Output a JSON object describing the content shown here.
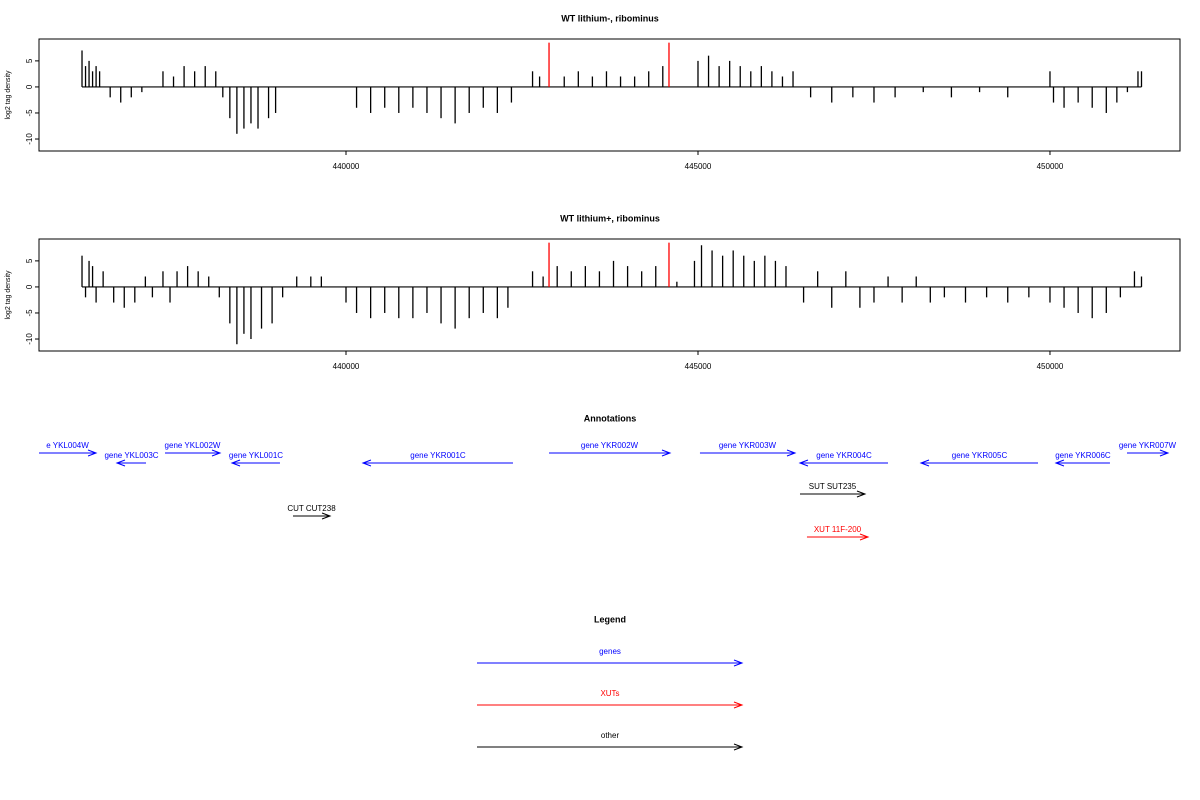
{
  "chart_data": [
    {
      "type": "bar",
      "title": "WT lithium-, ribominus",
      "ylabel": "log2 tag density",
      "xlim": [
        435639,
        451847
      ],
      "ylim": [
        -12.3,
        9.2
      ],
      "xticks": [
        440000,
        445000,
        450000
      ],
      "yticks": [
        5,
        0,
        -5,
        -10
      ],
      "series": [
        {
          "color": "#000000",
          "x": [
            436250,
            436300,
            436350,
            436400,
            436450,
            436500,
            436650,
            436800,
            436950,
            437100,
            437400,
            437550,
            437700,
            437850,
            438000,
            438150,
            438250,
            438350,
            438450,
            438550,
            438650,
            438750,
            438900,
            439000,
            440150,
            440350,
            440550,
            440750,
            440950,
            441150,
            441350,
            441550,
            441750,
            441950,
            442150,
            442350,
            442650,
            442750,
            443100,
            443300,
            443500,
            443700,
            443900,
            444100,
            444300,
            444500,
            445000,
            445150,
            445300,
            445450,
            445600,
            445750,
            445900,
            446050,
            446200,
            446350,
            446600,
            446900,
            447200,
            447500,
            447800,
            448200,
            448600,
            449000,
            449400,
            450000,
            450050,
            450200,
            450400,
            450600,
            450800,
            450950,
            451100,
            451250,
            451300
          ],
          "values": [
            7,
            4,
            5,
            3,
            4,
            3,
            -2,
            -3,
            -2,
            -1,
            3,
            2,
            4,
            3,
            4,
            3,
            -2,
            -6,
            -9,
            -8,
            -7,
            -8,
            -6,
            -5,
            -4,
            -5,
            -4,
            -5,
            -4,
            -5,
            -6,
            -7,
            -5,
            -4,
            -5,
            -3,
            3,
            2,
            2,
            3,
            2,
            3,
            2,
            2,
            3,
            4,
            5,
            6,
            4,
            5,
            4,
            3,
            4,
            3,
            2,
            3,
            -2,
            -3,
            -2,
            -3,
            -2,
            -1,
            -2,
            -1,
            -2,
            3,
            -3,
            -4,
            -3,
            -4,
            -5,
            -3,
            -1,
            3,
            3
          ]
        },
        {
          "color": "#ff0000",
          "x": [
            442884,
            444588
          ],
          "values": [
            8.5,
            8.5
          ]
        }
      ]
    },
    {
      "type": "bar",
      "title": "WT lithium+, ribominus",
      "ylabel": "log2 tag density",
      "xlim": [
        435639,
        451847
      ],
      "ylim": [
        -12.3,
        9.2
      ],
      "xticks": [
        440000,
        445000,
        450000
      ],
      "yticks": [
        5,
        0,
        -5,
        -10
      ],
      "series": [
        {
          "color": "#000000",
          "x": [
            436250,
            436300,
            436350,
            436400,
            436450,
            436550,
            436700,
            436850,
            437000,
            437150,
            437250,
            437400,
            437500,
            437600,
            437750,
            437900,
            438050,
            438200,
            438350,
            438450,
            438550,
            438650,
            438800,
            438950,
            439100,
            439300,
            439500,
            439650,
            440000,
            440150,
            440350,
            440550,
            440750,
            440950,
            441150,
            441350,
            441550,
            441750,
            441950,
            442150,
            442300,
            442650,
            442800,
            443000,
            443200,
            443400,
            443600,
            443800,
            444000,
            444200,
            444400,
            444700,
            444950,
            445050,
            445200,
            445350,
            445500,
            445650,
            445800,
            445950,
            446100,
            446250,
            446500,
            446700,
            446900,
            447100,
            447300,
            447500,
            447700,
            447900,
            448100,
            448300,
            448500,
            448800,
            449100,
            449400,
            449700,
            450000,
            450200,
            450400,
            450600,
            450800,
            451000,
            451200,
            451300
          ],
          "values": [
            6,
            -2,
            5,
            4,
            -3,
            3,
            -3,
            -4,
            -3,
            2,
            -2,
            3,
            -3,
            3,
            4,
            3,
            2,
            -2,
            -7,
            -11,
            -9,
            -10,
            -8,
            -7,
            -2,
            2,
            2,
            2,
            -3,
            -5,
            -6,
            -5,
            -6,
            -6,
            -5,
            -7,
            -8,
            -6,
            -5,
            -6,
            -4,
            3,
            2,
            4,
            3,
            4,
            3,
            5,
            4,
            3,
            4,
            1,
            5,
            8,
            7,
            6,
            7,
            6,
            5,
            6,
            5,
            4,
            -3,
            3,
            -4,
            3,
            -4,
            -3,
            2,
            -3,
            2,
            -3,
            -2,
            -3,
            -2,
            -3,
            -2,
            -3,
            -4,
            -5,
            -6,
            -5,
            -2,
            3,
            2
          ]
        },
        {
          "color": "#ff0000",
          "x": [
            442884,
            444588
          ],
          "values": [
            8.5,
            8.5
          ]
        }
      ]
    }
  ],
  "annotations": {
    "title": "Annotations",
    "features": [
      {
        "label": "e YKL004W",
        "start": 435639,
        "end": 436449,
        "strand": "W",
        "kind": "gene",
        "color": "#0000ff"
      },
      {
        "label": "gene YKL003C",
        "start": 436747,
        "end": 437159,
        "strand": "C",
        "kind": "gene",
        "color": "#0000ff"
      },
      {
        "label": "gene YKL002W",
        "start": 437429,
        "end": 438210,
        "strand": "W",
        "kind": "gene",
        "color": "#0000ff"
      },
      {
        "label": "gene YKL001C",
        "start": 438381,
        "end": 439062,
        "strand": "C",
        "kind": "gene",
        "color": "#0000ff"
      },
      {
        "label": "gene YKR001C",
        "start": 440241,
        "end": 442372,
        "strand": "C",
        "kind": "gene",
        "color": "#0000ff"
      },
      {
        "label": "gene YKR002W",
        "start": 442884,
        "end": 444602,
        "strand": "W",
        "kind": "gene",
        "color": "#0000ff"
      },
      {
        "label": "gene YKR003W",
        "start": 445028,
        "end": 446378,
        "strand": "W",
        "kind": "gene",
        "color": "#0000ff"
      },
      {
        "label": "gene YKR004C",
        "start": 446449,
        "end": 447699,
        "strand": "C",
        "kind": "gene",
        "color": "#0000ff"
      },
      {
        "label": "gene YKR005C",
        "start": 448168,
        "end": 449830,
        "strand": "C",
        "kind": "gene",
        "color": "#0000ff"
      },
      {
        "label": "gene YKR006C",
        "start": 450085,
        "end": 450852,
        "strand": "C",
        "kind": "gene",
        "color": "#0000ff"
      },
      {
        "label": "gene YKR007W",
        "start": 451094,
        "end": 451676,
        "strand": "W",
        "kind": "gene",
        "color": "#0000ff"
      },
      {
        "label": "SUT SUT235",
        "start": 446449,
        "end": 447372,
        "strand": "W",
        "kind": "other",
        "color": "#000000"
      },
      {
        "label": "CUT CUT238",
        "start": 439247,
        "end": 439773,
        "strand": "W",
        "kind": "other",
        "color": "#000000"
      },
      {
        "label": "XUT 11F-200",
        "start": 446548,
        "end": 447415,
        "strand": "W",
        "kind": "other",
        "color": "#ff0000"
      }
    ]
  },
  "legend": {
    "title": "Legend",
    "items": [
      {
        "label": "genes",
        "color": "#0000ff"
      },
      {
        "label": "XUTs",
        "color": "#ff0000"
      },
      {
        "label": "other",
        "color": "#000000"
      }
    ]
  }
}
